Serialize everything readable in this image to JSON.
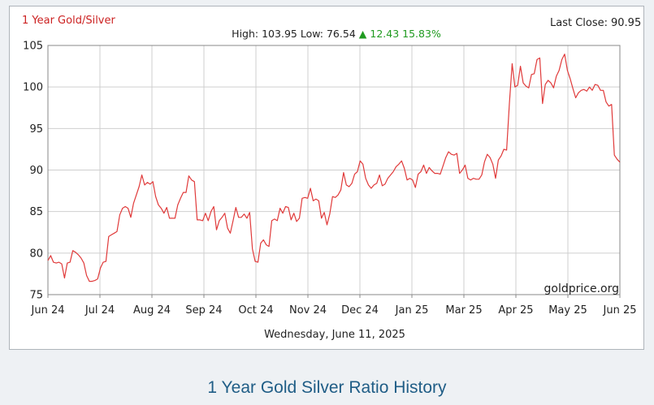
{
  "caption": "1 Year Gold Silver Ratio History",
  "chart_data": {
    "type": "line",
    "title": "1 Year Gold/Silver",
    "last_close_label": "Last Close:",
    "last_close": 90.95,
    "stats": {
      "high_label": "High:",
      "high": "103.95",
      "low_label": "Low:",
      "low": "76.54",
      "arrow": "▲",
      "change": "12.43",
      "change_pct": "15.83%"
    },
    "date_label": "Wednesday, June 11, 2025",
    "watermark": "goldprice.org",
    "ylim": [
      75,
      105
    ],
    "yticks": [
      75,
      80,
      85,
      90,
      95,
      100,
      105
    ],
    "xticks": [
      "Jun 24",
      "Jul 24",
      "Aug 24",
      "Sep 24",
      "Oct 24",
      "Nov 24",
      "Dec 24",
      "Jan 25",
      "Mar 25",
      "Apr 25",
      "May 25",
      "Jun 25"
    ],
    "grid": true,
    "colors": {
      "title": "#cc2222",
      "line": "#e03a3a",
      "change": "#1f9a1f",
      "grid": "#cfcfcf",
      "axis": "#888888",
      "caption": "#1f5d86"
    },
    "series": [
      {
        "values": [
          79.1,
          79.7,
          78.9,
          78.8,
          78.9,
          78.7,
          77.0,
          78.8,
          78.9,
          80.3,
          80.1,
          79.8,
          79.4,
          78.8,
          77.3,
          76.6,
          76.6,
          76.7,
          76.9,
          78.2,
          78.9,
          79.0,
          82.0,
          82.2,
          82.4,
          82.6,
          84.6,
          85.4,
          85.6,
          85.4,
          84.3,
          86.0,
          87.0,
          88.0,
          89.4,
          88.2,
          88.5,
          88.3,
          88.6,
          86.8,
          85.8,
          85.4,
          84.8,
          85.5,
          84.2,
          84.2,
          84.2,
          85.8,
          86.6,
          87.3,
          87.3,
          89.3,
          88.8,
          88.6,
          84.0,
          84.0,
          83.9,
          84.8,
          83.9,
          85.0,
          85.6,
          82.8,
          83.9,
          84.3,
          84.8,
          83.0,
          82.4,
          83.9,
          85.5,
          84.3,
          84.3,
          84.7,
          84.2,
          84.9,
          80.5,
          79.0,
          78.9,
          81.2,
          81.6,
          81.0,
          80.8,
          83.9,
          84.1,
          83.9,
          85.4,
          84.8,
          85.6,
          85.5,
          84.0,
          84.8,
          83.8,
          84.2,
          86.6,
          86.7,
          86.6,
          87.8,
          86.3,
          86.5,
          86.3,
          84.2,
          84.9,
          83.4,
          84.7,
          86.8,
          86.7,
          87.0,
          87.6,
          89.7,
          88.2,
          88.0,
          88.4,
          89.5,
          89.8,
          91.1,
          90.7,
          89.0,
          88.2,
          87.8,
          88.2,
          88.4,
          89.4,
          88.1,
          88.3,
          89.0,
          89.4,
          89.8,
          90.4,
          90.7,
          91.1,
          90.2,
          88.8,
          89.0,
          88.8,
          87.9,
          89.5,
          89.8,
          90.6,
          89.6,
          90.3,
          89.9,
          89.6,
          89.6,
          89.5,
          90.5,
          91.5,
          92.2,
          91.9,
          91.8,
          92.0,
          89.6,
          90.0,
          90.6,
          89.0,
          88.8,
          89.0,
          88.9,
          88.9,
          89.4,
          91.0,
          91.9,
          91.5,
          90.7,
          89.0,
          91.2,
          91.7,
          92.5,
          92.4,
          98.0,
          102.8,
          100.0,
          100.2,
          102.5,
          100.5,
          100.1,
          99.9,
          101.5,
          101.6,
          103.3,
          103.5,
          98.0,
          100.3,
          100.8,
          100.5,
          99.9,
          101.3,
          102.0,
          103.3,
          103.95,
          102.0,
          101.0,
          99.8,
          98.7,
          99.3,
          99.6,
          99.7,
          99.5,
          100.0,
          99.6,
          100.3,
          100.2,
          99.6,
          99.6,
          98.2,
          97.7,
          97.9,
          91.8,
          91.3,
          90.95
        ]
      }
    ]
  }
}
